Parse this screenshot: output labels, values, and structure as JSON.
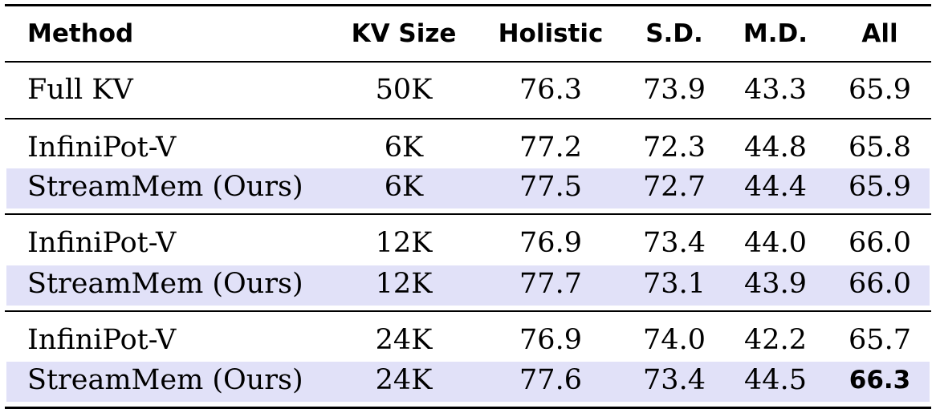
{
  "table": {
    "headers": [
      "Method",
      "KV Size",
      "Holistic",
      "S.D.",
      "M.D.",
      "All"
    ],
    "groups": [
      {
        "rows": [
          {
            "method": "Full KV",
            "kv": "50K",
            "holistic": "76.3",
            "sd": "73.9",
            "md": "43.3",
            "all": "65.9",
            "highlight": false,
            "bold_all": false
          }
        ]
      },
      {
        "rows": [
          {
            "method": "InfiniPot-V",
            "kv": "6K",
            "holistic": "77.2",
            "sd": "72.3",
            "md": "44.8",
            "all": "65.8",
            "highlight": false,
            "bold_all": false
          },
          {
            "method": "StreamMem (Ours)",
            "kv": "6K",
            "holistic": "77.5",
            "sd": "72.7",
            "md": "44.4",
            "all": "65.9",
            "highlight": true,
            "bold_all": false
          }
        ]
      },
      {
        "rows": [
          {
            "method": "InfiniPot-V",
            "kv": "12K",
            "holistic": "76.9",
            "sd": "73.4",
            "md": "44.0",
            "all": "66.0",
            "highlight": false,
            "bold_all": false
          },
          {
            "method": "StreamMem (Ours)",
            "kv": "12K",
            "holistic": "77.7",
            "sd": "73.1",
            "md": "43.9",
            "all": "66.0",
            "highlight": true,
            "bold_all": false
          }
        ]
      },
      {
        "rows": [
          {
            "method": "InfiniPot-V",
            "kv": "24K",
            "holistic": "76.9",
            "sd": "74.0",
            "md": "42.2",
            "all": "65.7",
            "highlight": false,
            "bold_all": false
          },
          {
            "method": "StreamMem (Ours)",
            "kv": "24K",
            "holistic": "77.6",
            "sd": "73.4",
            "md": "44.5",
            "all": "66.3",
            "highlight": true,
            "bold_all": true
          }
        ]
      }
    ]
  },
  "colors": {
    "highlight": "#e1e1f8",
    "rule": "#000000"
  }
}
